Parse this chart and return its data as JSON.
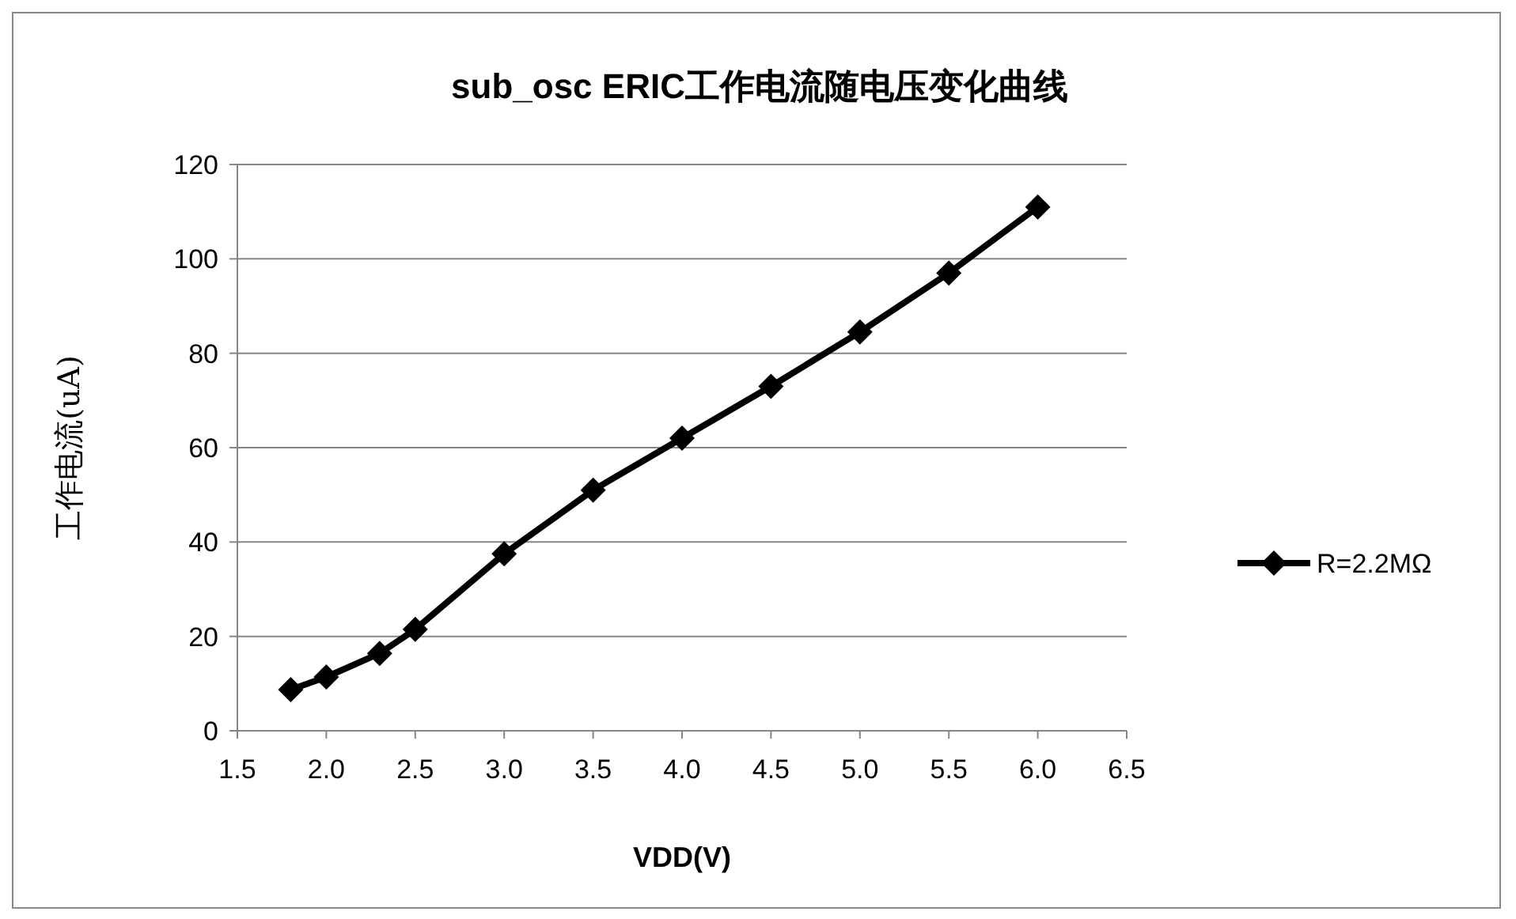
{
  "chart_data": {
    "type": "line",
    "title": "sub_osc  ERIC工作电流随电压变化曲线",
    "xlabel": "VDD(V)",
    "ylabel": "工作电流(uA)",
    "x": [
      1.8,
      2.0,
      2.3,
      2.5,
      3.0,
      3.5,
      4.0,
      4.5,
      5.0,
      5.5,
      6.0
    ],
    "series": [
      {
        "name": "R=2.2MΩ",
        "color": "#000000",
        "values": [
          8.7,
          11.4,
          16.4,
          21.5,
          37.5,
          51,
          62,
          73,
          84.5,
          97,
          111
        ]
      }
    ],
    "xlim": [
      1.5,
      6.5
    ],
    "xticks": [
      {
        "value": 1.5,
        "label": "1.5"
      },
      {
        "value": 2,
        "label": "2.0"
      },
      {
        "value": 2.5,
        "label": "2.5"
      },
      {
        "value": 3,
        "label": "3.0"
      },
      {
        "value": 3.5,
        "label": "3.5"
      },
      {
        "value": 4,
        "label": "4.0"
      },
      {
        "value": 4.5,
        "label": "4.5"
      },
      {
        "value": 5,
        "label": "5.0"
      },
      {
        "value": 5.5,
        "label": "5.5"
      },
      {
        "value": 6,
        "label": "6.0"
      },
      {
        "value": 6.5,
        "label": "6.5"
      }
    ],
    "ylim": [
      0,
      120
    ],
    "yticks": [
      0,
      20,
      40,
      60,
      80,
      100,
      120
    ],
    "grid": "y",
    "legend": "right",
    "marker": "diamond",
    "line_style": "solid"
  }
}
